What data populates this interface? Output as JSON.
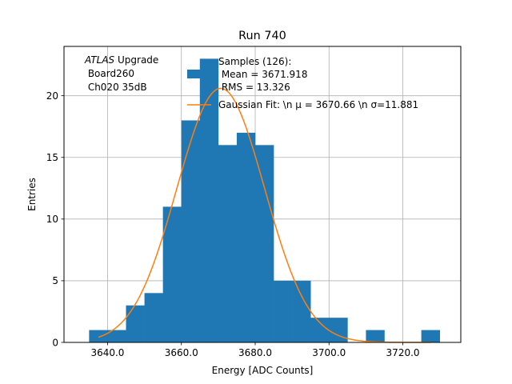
{
  "chart_data": {
    "type": "bar",
    "title": "Run 740",
    "xlabel": "Energy [ADC Counts]",
    "ylabel": "Entries",
    "xlim": [
      3628.2,
      3735.7
    ],
    "ylim": [
      0,
      24
    ],
    "grid": true,
    "x_ticks": [
      {
        "value": 3640,
        "label": "3640.0"
      },
      {
        "value": 3660,
        "label": "3660.0"
      },
      {
        "value": 3680,
        "label": "3680.0"
      },
      {
        "value": 3700,
        "label": "3700.0"
      },
      {
        "value": 3720,
        "label": "3720.0"
      }
    ],
    "y_ticks": [
      {
        "value": 0,
        "label": "0"
      },
      {
        "value": 5,
        "label": "5"
      },
      {
        "value": 10,
        "label": "10"
      },
      {
        "value": 15,
        "label": "15"
      },
      {
        "value": 20,
        "label": "20"
      }
    ],
    "histogram": {
      "bin_edges": [
        3635.0,
        3640.0,
        3645.0,
        3650.0,
        3655.0,
        3660.0,
        3665.0,
        3670.0,
        3675.0,
        3680.0,
        3685.0,
        3690.0,
        3695.0,
        3700.0,
        3705.0,
        3710.0,
        3715.0,
        3720.0,
        3725.0,
        3730.0
      ],
      "counts": [
        1,
        1,
        3,
        4,
        11,
        18,
        23,
        16,
        17,
        16,
        5,
        5,
        2,
        2,
        0,
        1,
        0,
        0,
        1
      ],
      "color": "#1f77b4"
    },
    "fit": {
      "type": "gaussian",
      "mean": 3670.66,
      "sigma": 11.881,
      "amplitude": 20.6,
      "x_range": [
        3637.5,
        3727.5
      ],
      "color": "#ff7f0e"
    },
    "annotation": {
      "italic": "ATLAS",
      "line1_rest": " Upgrade",
      "line2": " Board260",
      "line3": " Ch020 35dB"
    },
    "legend": {
      "placement": "top-right",
      "hist_line1": "Samples (126):",
      "hist_line2": " Mean = 3671.918",
      "hist_line3": " RMS = 13.326",
      "fit_label": "Gaussian Fit: \\n μ = 3670.66 \\n σ=11.881"
    }
  }
}
